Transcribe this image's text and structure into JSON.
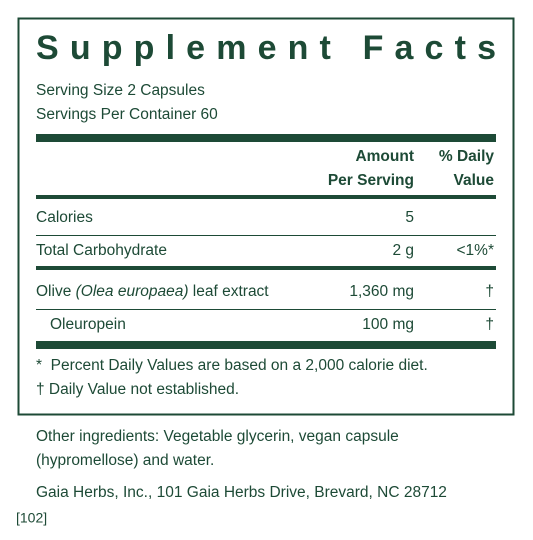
{
  "title": "Supplement Facts",
  "serving": {
    "size": "Serving Size 2 Capsules",
    "per_container": "Servings Per Container 60"
  },
  "header": {
    "amount": [
      "Amount",
      "Per Serving"
    ],
    "daily_value": [
      "% Daily",
      "Value"
    ]
  },
  "rows": [
    {
      "name": "Calories",
      "amount": "5"
    },
    {
      "name": "Total Carbohydrate",
      "amount": "2 g",
      "daily_value": "<1%*"
    },
    {
      "name_parts": [
        "Olive ",
        "(Olea europaea)",
        " leaf extract"
      ],
      "amount": "1,360 mg",
      "daily_value": "†"
    },
    {
      "name": "Oleuropein",
      "amount": "100 mg",
      "daily_value": "†"
    }
  ],
  "footnotes": [
    "*  Percent Daily Values are based on a 2,000 calorie diet.",
    "† Daily Value not established."
  ],
  "other_ingredients": [
    "Other ingredients: Vegetable glycerin, vegan capsule",
    "(hypromellose) and water."
  ],
  "manufacturer": "Gaia Herbs, Inc., 101 Gaia Herbs Drive, Brevard, NC 28712",
  "code": "[102]"
}
